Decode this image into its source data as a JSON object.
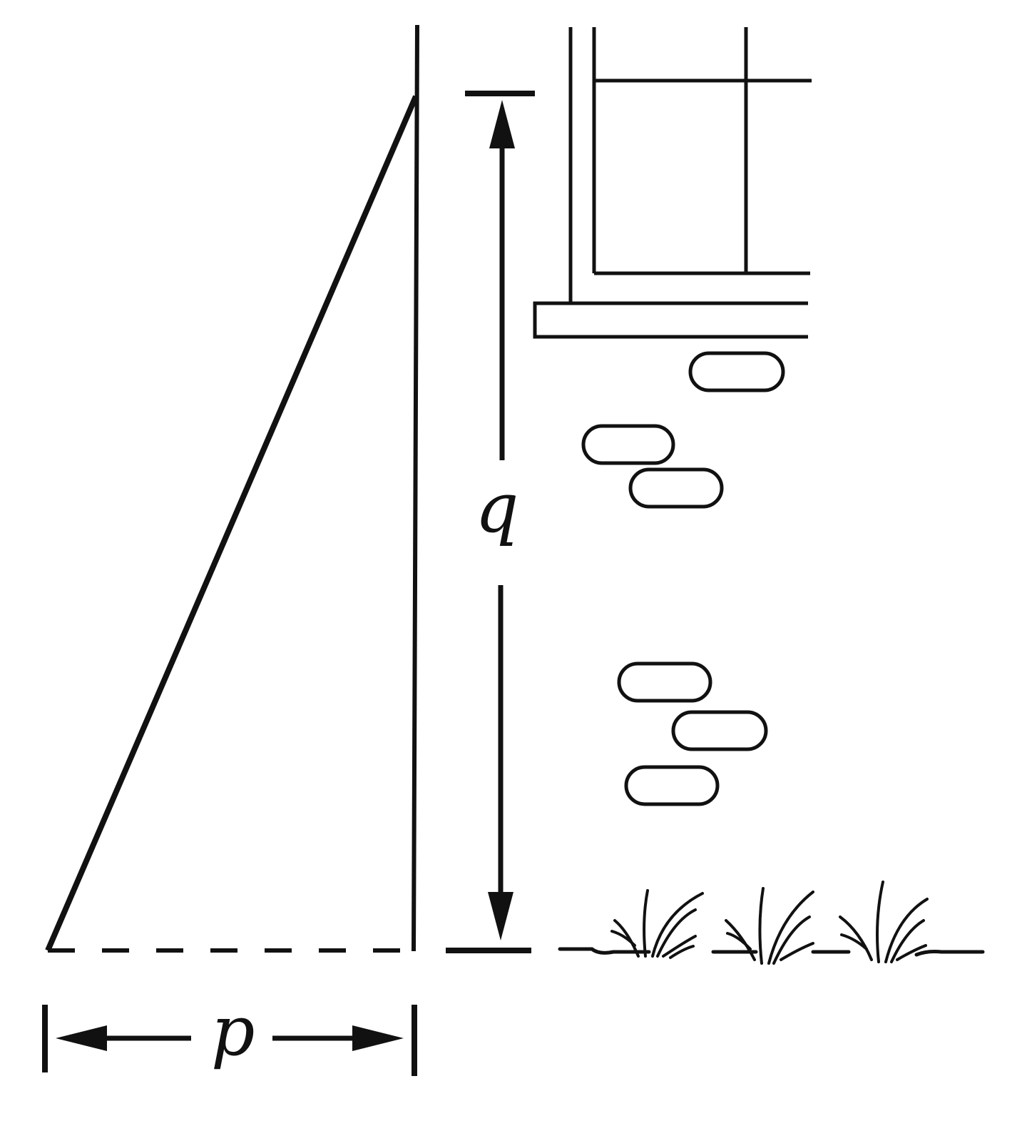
{
  "labels": {
    "height": "q",
    "base": "p"
  },
  "colors": {
    "ink": "#111111",
    "background": "#ffffff"
  }
}
